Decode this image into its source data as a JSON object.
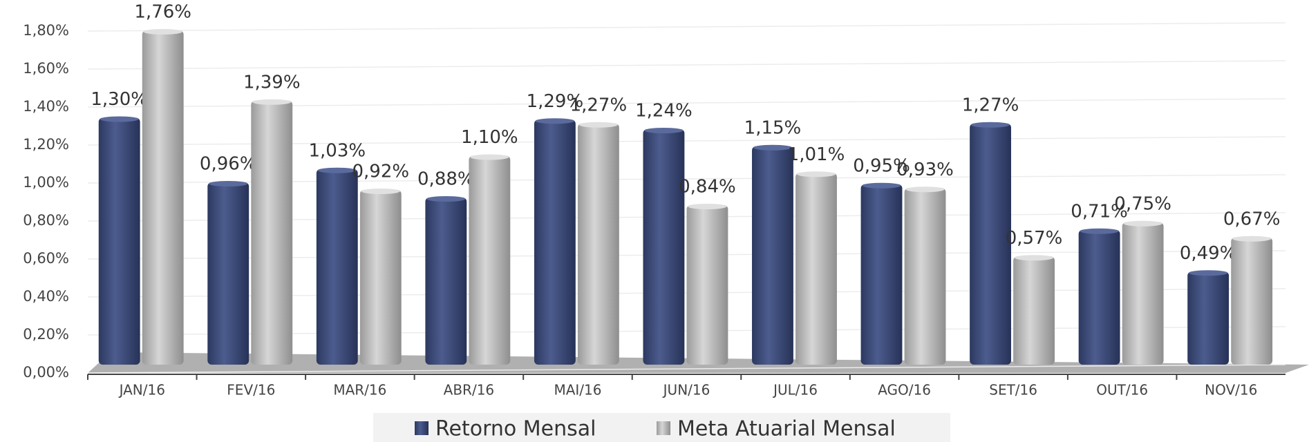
{
  "chart_data": {
    "type": "bar",
    "categories": [
      "JAN/16",
      "FEV/16",
      "MAR/16",
      "ABR/16",
      "MAI/16",
      "JUN/16",
      "JUL/16",
      "AGO/16",
      "SET/16",
      "OUT/16",
      "NOV/16"
    ],
    "series": [
      {
        "name": "Retorno Mensal",
        "color": "#3b4a7a",
        "values": [
          1.3,
          0.96,
          1.03,
          0.88,
          1.29,
          1.24,
          1.15,
          0.95,
          1.27,
          0.71,
          0.49
        ],
        "value_labels": [
          "1,30%",
          "0,96%",
          "1,03%",
          "0,88%",
          "1,29%",
          "1,24%",
          "1,15%",
          "0,95%",
          "1,27%",
          "0,71%",
          "0,49%"
        ]
      },
      {
        "name": "Meta Atuarial Mensal",
        "color": "#b4b4b4",
        "values": [
          1.76,
          1.39,
          0.92,
          1.1,
          1.27,
          0.84,
          1.01,
          0.93,
          0.57,
          0.75,
          0.67
        ],
        "value_labels": [
          "1,76%",
          "1,39%",
          "0,92%",
          "1,10%",
          "1,27%",
          "0,84%",
          "1,01%",
          "0,93%",
          "0,57%",
          "0,75%",
          "0,67%"
        ]
      }
    ],
    "ylim": [
      0,
      1.8
    ],
    "yticks": [
      {
        "value": 0,
        "label": "0,00%"
      },
      {
        "value": 0.2,
        "label": "0,20%"
      },
      {
        "value": 0.4,
        "label": "0,40%"
      },
      {
        "value": 0.6,
        "label": "0,60%"
      },
      {
        "value": 0.8,
        "label": "0,80%"
      },
      {
        "value": 1.0,
        "label": "1,00%"
      },
      {
        "value": 1.2,
        "label": "1,20%"
      },
      {
        "value": 1.4,
        "label": "1,40%"
      },
      {
        "value": 1.6,
        "label": "1,60%"
      },
      {
        "value": 1.8,
        "label": "1,80%"
      }
    ],
    "grid": true,
    "legend": "bottom"
  }
}
